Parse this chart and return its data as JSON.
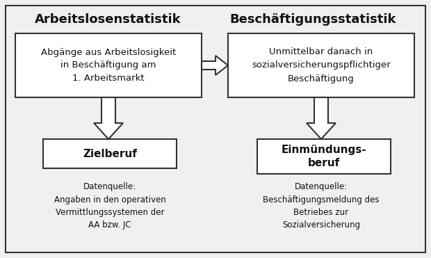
{
  "bg_color": "#f0f0f0",
  "border_color": "#333333",
  "box_color": "#ffffff",
  "text_color": "#111111",
  "title_left": "Arbeitslosenstatistik",
  "title_right": "Beschäftigungsstatistik",
  "box1_text": "Abgänge aus Arbeitslosigkeit\nin Beschäftigung am\n1. Arbeitsmarkt",
  "box2_text": "Unmittelbar danach in\nsozialversicherungspflichtiger\nBeschäftigung",
  "box3_text": "Zielberuf",
  "box4_text": "Einmündungs-\nberuf",
  "note1_text": "Datenquelle:\nAngaben in den operativen\nVermittlungssystemen der\nAA bzw. JC",
  "note2_text": "Datenquelle:\nBeschäftigungsmeldung des\nBetriebes zur\nSozialversicherung",
  "fig_w": 6.2,
  "fig_h": 3.71,
  "dpi": 100
}
